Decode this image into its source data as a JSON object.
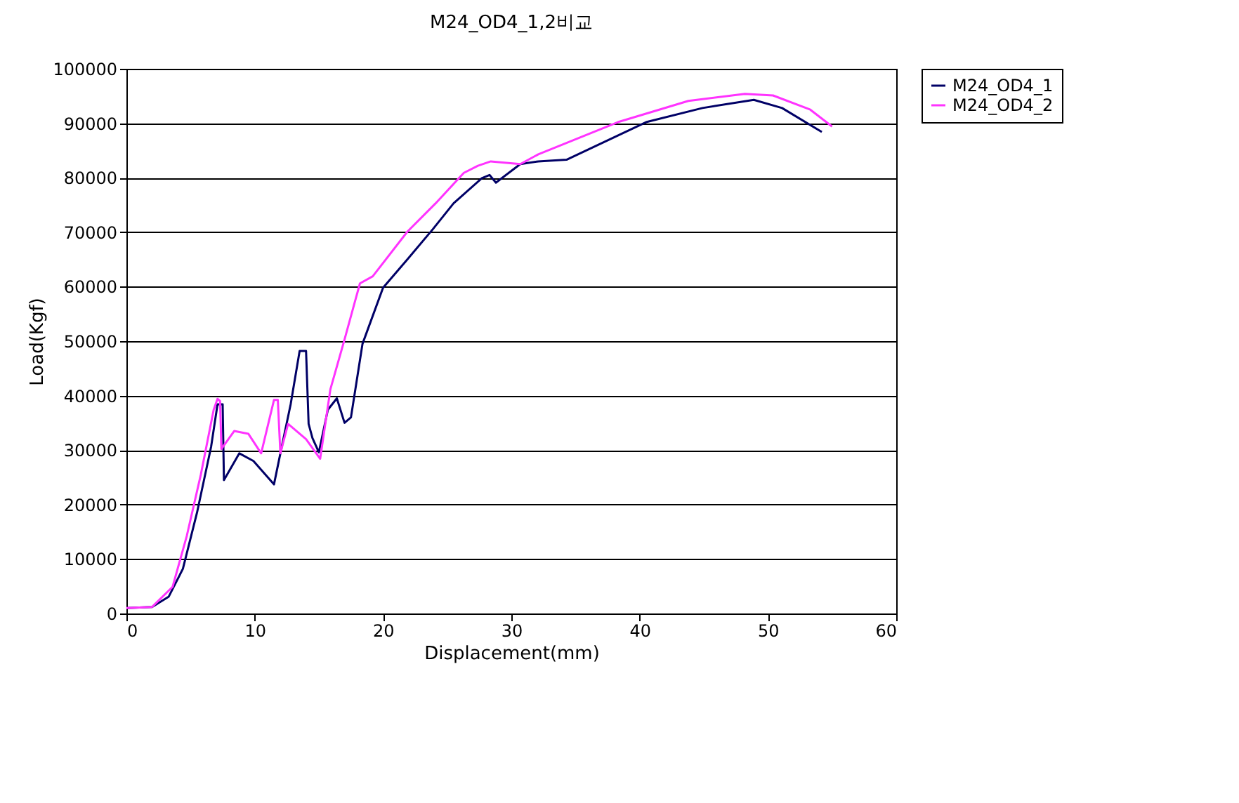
{
  "chart_data": {
    "type": "line",
    "title": "M24_OD4_1,2비교",
    "xlabel": "Displacement(mm)",
    "ylabel": "Load(Kgf)",
    "xlim": [
      0,
      60
    ],
    "xticks": [
      0,
      10,
      20,
      30,
      40,
      50,
      60
    ],
    "ylim": [
      0,
      100000
    ],
    "yticks": [
      0,
      10000,
      20000,
      30000,
      40000,
      50000,
      60000,
      70000,
      80000,
      90000,
      100000
    ],
    "grid": "y",
    "legend": "right",
    "marker": "none",
    "line_style": "solid",
    "series": [
      {
        "name": "M24_OD4_1",
        "color": "#000066",
        "x": [
          0,
          2,
          3.3,
          4.4,
          5.5,
          6.6,
          7.1,
          7.5,
          7.6,
          8.8,
          9.9,
          11.5,
          12.0,
          12.8,
          13.5,
          14.0,
          14.2,
          14.5,
          15.0,
          15.7,
          16.4,
          17.0,
          17.5,
          18.4,
          20.0,
          21.9,
          23.9,
          25.5,
          27.7,
          28.3,
          28.8,
          30.7,
          32.1,
          34.3,
          40.5,
          44.9,
          48.9,
          51.1,
          54.2
        ],
        "values": [
          1000,
          1200,
          3100,
          8200,
          18500,
          30600,
          38400,
          38400,
          24500,
          29400,
          28000,
          23700,
          29400,
          38400,
          48200,
          48200,
          34800,
          32200,
          29600,
          37400,
          39500,
          35000,
          36000,
          49500,
          59800,
          65000,
          70600,
          75300,
          79900,
          80500,
          79100,
          82500,
          83000,
          83300,
          90200,
          92800,
          94300,
          92800,
          88400
        ]
      },
      {
        "name": "M24_OD4_2",
        "color": "#ff33ff",
        "x": [
          0,
          2,
          3.6,
          4.7,
          5.8,
          6.8,
          7.1,
          7.3,
          7.4,
          8.4,
          9.5,
          10.5,
          11.5,
          11.8,
          12.0,
          12.6,
          13.5,
          14.0,
          15.1,
          15.9,
          17.0,
          18.2,
          19.2,
          21.9,
          24.1,
          26.3,
          27.4,
          28.4,
          30.7,
          32.1,
          38.3,
          43.8,
          48.2,
          50.4,
          53.3,
          55.0
        ],
        "values": [
          1000,
          1200,
          4900,
          14200,
          25500,
          37400,
          39400,
          39000,
          30200,
          33500,
          33000,
          29400,
          39200,
          39200,
          29400,
          34800,
          33000,
          32000,
          28400,
          41200,
          50300,
          60600,
          61900,
          70100,
          75300,
          80900,
          82200,
          83000,
          82500,
          84300,
          90200,
          94100,
          95400,
          95100,
          92500,
          89400
        ]
      }
    ]
  }
}
